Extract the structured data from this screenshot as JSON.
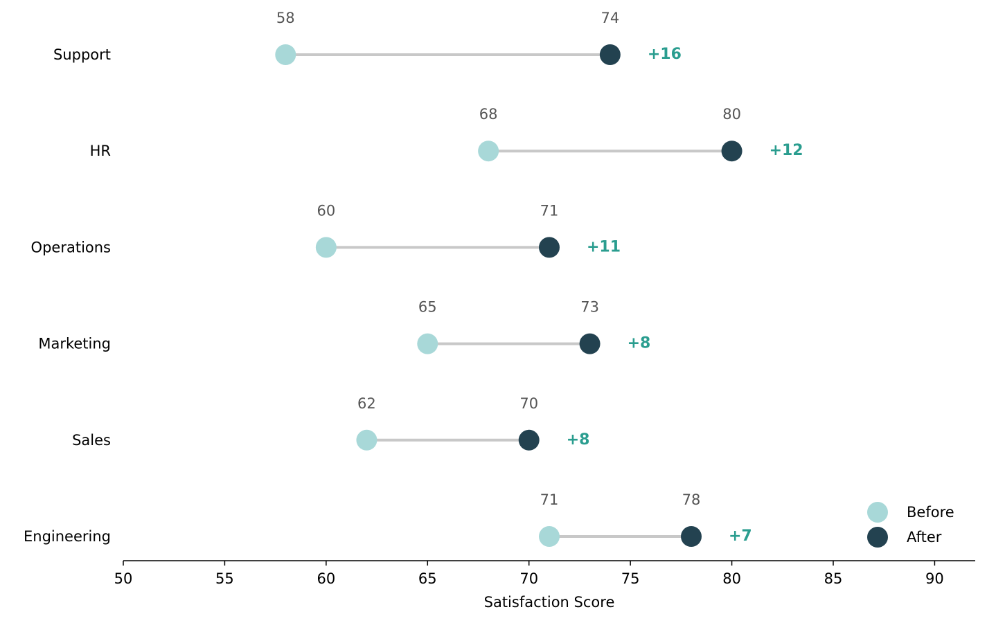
{
  "chart_data": {
    "type": "dumbbell",
    "categories": [
      "Support",
      "HR",
      "Operations",
      "Marketing",
      "Sales",
      "Engineering"
    ],
    "series": [
      {
        "name": "Before",
        "values": [
          58,
          68,
          60,
          65,
          62,
          71
        ]
      },
      {
        "name": "After",
        "values": [
          74,
          80,
          71,
          73,
          70,
          78
        ]
      }
    ],
    "differences": [
      "+16",
      "+12",
      "+11",
      "+8",
      "+8",
      "+7"
    ],
    "xlabel": "Satisfaction Score",
    "ylabel": "",
    "title": "",
    "xlim": [
      50,
      92
    ],
    "xticks": [
      50,
      55,
      60,
      65,
      70,
      75,
      80,
      85,
      90
    ],
    "grid": false,
    "legend": {
      "position": "bottom-right",
      "entries": [
        "Before",
        "After"
      ]
    },
    "colors": {
      "before": "#a8d8d8",
      "after": "#234250",
      "connector": "#c8c8c8",
      "difference": "#2a9d8f",
      "value_label": "#555555",
      "axis": "#000000"
    }
  }
}
